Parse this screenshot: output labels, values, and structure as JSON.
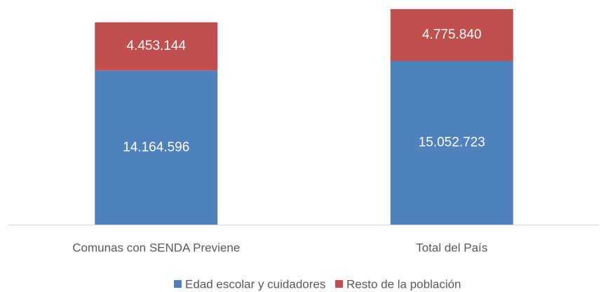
{
  "chart_data": {
    "type": "stacked_bar",
    "categories": [
      "Comunas con SENDA Previene",
      "Total del País"
    ],
    "series": [
      {
        "name": "Edad escolar y cuidadores",
        "color": "#4f81bd",
        "values": [
          14164596,
          15052723
        ],
        "value_labels": [
          "14.164.596",
          "15.052.723"
        ]
      },
      {
        "name": "Resto de la población",
        "color": "#c0504d",
        "values": [
          4453144,
          4775840
        ],
        "value_labels": [
          "4.453.144",
          "4.775.840"
        ]
      }
    ]
  }
}
